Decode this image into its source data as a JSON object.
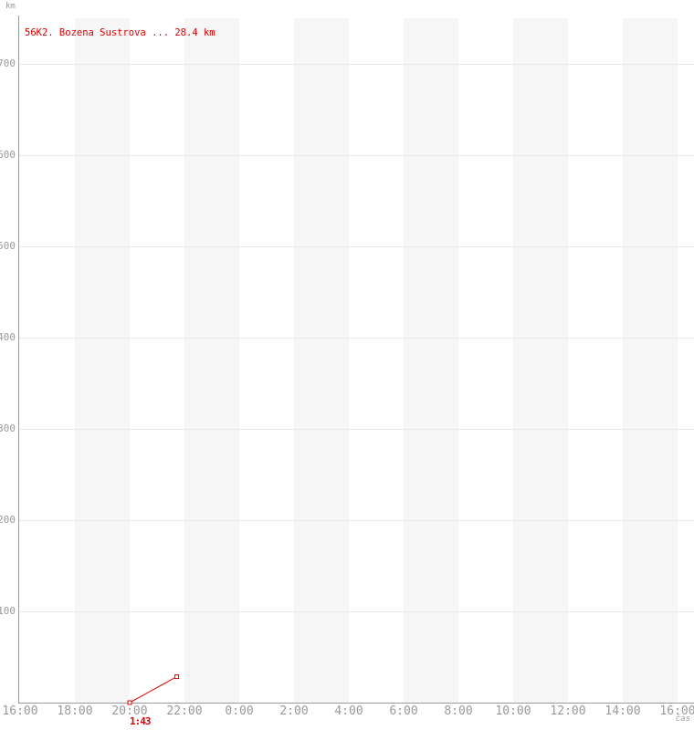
{
  "chart_data": {
    "type": "line",
    "title": "",
    "legend": "56K2. Bozena Sustrova ... 28.4 km",
    "ylabel": "km",
    "xlabel": "čas",
    "ylim": [
      0,
      750
    ],
    "y_ticks": [
      100,
      200,
      300,
      400,
      500,
      600,
      700
    ],
    "x_ticks": [
      {
        "label": "16:00",
        "hour": 16
      },
      {
        "label": "18:00",
        "hour": 18
      },
      {
        "label": "20:00",
        "hour": 20
      },
      {
        "label": "22:00",
        "hour": 22
      },
      {
        "label": "0:00",
        "hour": 24
      },
      {
        "label": "2:00",
        "hour": 26
      },
      {
        "label": "4:00",
        "hour": 28
      },
      {
        "label": "6:00",
        "hour": 30
      },
      {
        "label": "8:00",
        "hour": 32
      },
      {
        "label": "10:00",
        "hour": 34
      },
      {
        "label": "12:00",
        "hour": 36
      },
      {
        "label": "14:00",
        "hour": 38
      },
      {
        "label": "16:00",
        "hour": 40
      }
    ],
    "shaded_hour_bands": [
      [
        18,
        20
      ],
      [
        22,
        24
      ],
      [
        26,
        28
      ],
      [
        30,
        32
      ],
      [
        34,
        36
      ],
      [
        38,
        40
      ]
    ],
    "grid": true,
    "legend_position": "top-left",
    "series": [
      {
        "name": "56K2. Bozena Sustrova",
        "total_km": 28.4,
        "duration": "1:43",
        "color": "#dd0000",
        "points": [
          {
            "time": "20:00",
            "hour": 20.0,
            "km": 0
          },
          {
            "time": "21:43",
            "hour": 21.72,
            "km": 28.4
          }
        ]
      }
    ],
    "annotation": {
      "text": "1:43"
    },
    "colors": {
      "background": "#ffffff",
      "axis": "#999999",
      "tick_text": "#999999",
      "gridline": "#e9e9e9",
      "band": "#f6f6f6",
      "series": "#dd0000"
    }
  }
}
